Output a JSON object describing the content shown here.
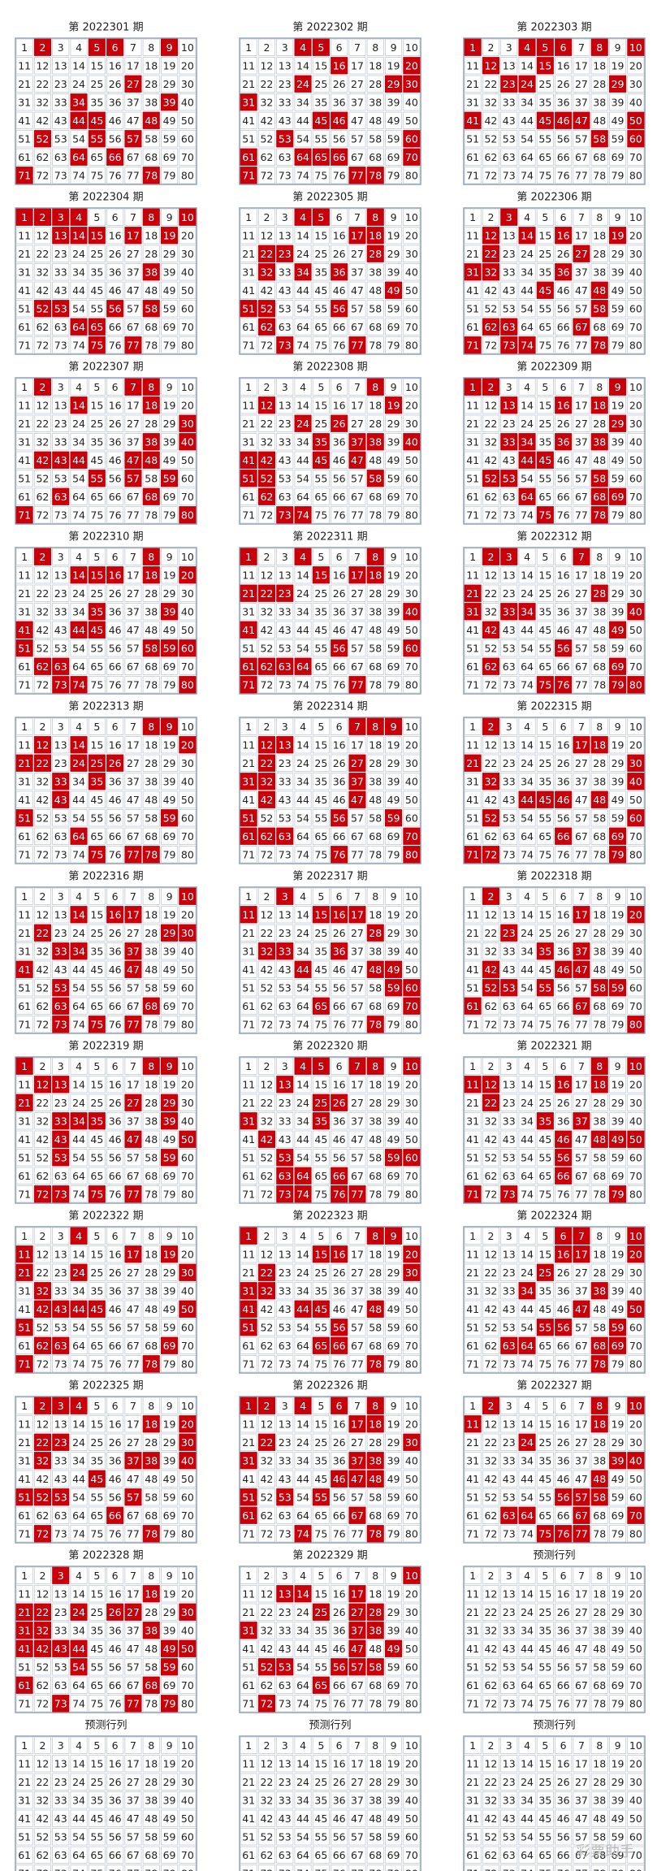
{
  "numbers": [
    1,
    2,
    3,
    4,
    5,
    6,
    7,
    8,
    9,
    10,
    11,
    12,
    13,
    14,
    15,
    16,
    17,
    18,
    19,
    20,
    21,
    22,
    23,
    24,
    25,
    26,
    27,
    28,
    29,
    30,
    31,
    32,
    33,
    34,
    35,
    36,
    37,
    38,
    39,
    40,
    41,
    42,
    43,
    44,
    45,
    46,
    47,
    48,
    49,
    50,
    51,
    52,
    53,
    54,
    55,
    56,
    57,
    58,
    59,
    60,
    61,
    62,
    63,
    64,
    65,
    66,
    67,
    68,
    69,
    70,
    71,
    72,
    73,
    74,
    75,
    76,
    77,
    78,
    79,
    80
  ],
  "grids": [
    {
      "title": "第 2022301 期",
      "drawn": [
        2,
        5,
        6,
        9,
        27,
        34,
        39,
        44,
        45,
        48,
        52,
        55,
        57,
        64,
        66,
        71,
        78
      ]
    },
    {
      "title": "第 2022302 期",
      "drawn": [
        4,
        5,
        16,
        20,
        24,
        29,
        30,
        31,
        45,
        46,
        53,
        60,
        61,
        64,
        65,
        66,
        70,
        71,
        77,
        78
      ]
    },
    {
      "title": "第 2022303 期",
      "drawn": [
        1,
        4,
        5,
        6,
        8,
        10,
        12,
        15,
        23,
        24,
        29,
        41,
        45,
        46,
        47,
        50,
        58,
        60
      ]
    },
    {
      "title": "第 2022304 期",
      "drawn": [
        1,
        2,
        3,
        4,
        8,
        10,
        13,
        14,
        15,
        17,
        19,
        38,
        52,
        53,
        56,
        58,
        64,
        65,
        75,
        77
      ]
    },
    {
      "title": "第 2022305 期",
      "drawn": [
        4,
        5,
        8,
        17,
        18,
        22,
        23,
        28,
        32,
        34,
        36,
        49,
        51,
        52,
        56,
        62,
        73,
        77
      ]
    },
    {
      "title": "第 2022306 期",
      "drawn": [
        3,
        12,
        14,
        16,
        19,
        22,
        27,
        31,
        32,
        36,
        45,
        48,
        58,
        62,
        63,
        67,
        71,
        73,
        74,
        78
      ]
    },
    {
      "title": "第 2022307 期",
      "drawn": [
        2,
        7,
        8,
        14,
        18,
        30,
        38,
        40,
        42,
        43,
        44,
        47,
        48,
        55,
        57,
        59,
        63,
        68,
        71,
        80
      ]
    },
    {
      "title": "第 2022308 期",
      "drawn": [
        8,
        12,
        19,
        24,
        26,
        35,
        37,
        38,
        40,
        41,
        42,
        45,
        47,
        51,
        52,
        58,
        62,
        73,
        74
      ]
    },
    {
      "title": "第 2022309 期",
      "drawn": [
        1,
        2,
        9,
        13,
        16,
        18,
        29,
        33,
        34,
        36,
        38,
        44,
        45,
        52,
        53,
        58,
        64,
        68,
        69,
        75,
        78
      ]
    },
    {
      "title": "第 2022310 期",
      "drawn": [
        2,
        8,
        14,
        15,
        16,
        18,
        20,
        35,
        39,
        41,
        44,
        45,
        51,
        58,
        59,
        60,
        62,
        63,
        73,
        74,
        80
      ]
    },
    {
      "title": "第 2022311 期",
      "drawn": [
        1,
        4,
        8,
        15,
        17,
        18,
        21,
        22,
        23,
        40,
        41,
        56,
        60,
        61,
        62,
        63,
        64,
        71,
        77
      ]
    },
    {
      "title": "第 2022312 期",
      "drawn": [
        2,
        3,
        7,
        21,
        28,
        31,
        33,
        34,
        40,
        42,
        49,
        56,
        62,
        69,
        75,
        76,
        79,
        80
      ]
    },
    {
      "title": "第 2022313 期",
      "drawn": [
        8,
        9,
        12,
        14,
        20,
        21,
        22,
        24,
        25,
        26,
        33,
        35,
        43,
        51,
        59,
        64,
        75,
        77,
        78
      ]
    },
    {
      "title": "第 2022314 期",
      "drawn": [
        7,
        8,
        9,
        12,
        13,
        22,
        27,
        31,
        32,
        37,
        42,
        47,
        51,
        56,
        59,
        61,
        62,
        63,
        70,
        76,
        80
      ]
    },
    {
      "title": "第 2022315 期",
      "drawn": [
        2,
        17,
        18,
        21,
        30,
        32,
        40,
        44,
        45,
        46,
        48,
        52,
        60,
        66,
        69,
        71,
        72,
        79
      ]
    },
    {
      "title": "第 2022316 期",
      "drawn": [
        10,
        14,
        16,
        17,
        22,
        29,
        30,
        33,
        34,
        37,
        41,
        47,
        53,
        63,
        68,
        73,
        75,
        77
      ]
    },
    {
      "title": "第 2022317 期",
      "drawn": [
        3,
        11,
        15,
        16,
        17,
        28,
        32,
        33,
        36,
        44,
        48,
        49,
        59,
        60,
        65,
        70,
        78
      ]
    },
    {
      "title": "第 2022318 期",
      "drawn": [
        2,
        17,
        20,
        23,
        35,
        37,
        42,
        46,
        47,
        52,
        53,
        55,
        58,
        59,
        61,
        67,
        80
      ]
    },
    {
      "title": "第 2022319 期",
      "drawn": [
        1,
        8,
        9,
        12,
        13,
        21,
        27,
        29,
        33,
        34,
        35,
        39,
        43,
        47,
        50,
        53,
        59,
        72,
        73,
        75,
        77
      ]
    },
    {
      "title": "第 2022320 期",
      "drawn": [
        4,
        5,
        7,
        8,
        10,
        13,
        25,
        26,
        31,
        35,
        42,
        53,
        59,
        60,
        63,
        64,
        66,
        73,
        74,
        76,
        77
      ]
    },
    {
      "title": "第 2022321 期",
      "drawn": [
        8,
        10,
        11,
        12,
        16,
        18,
        22,
        35,
        37,
        46,
        48,
        49,
        50,
        56,
        66,
        71,
        73,
        79
      ]
    },
    {
      "title": "第 2022322 期",
      "drawn": [
        4,
        11,
        17,
        19,
        21,
        24,
        30,
        32,
        42,
        43,
        44,
        45,
        50,
        51,
        62,
        63,
        69,
        71,
        78
      ]
    },
    {
      "title": "第 2022323 期",
      "drawn": [
        1,
        8,
        9,
        15,
        16,
        20,
        22,
        30,
        31,
        32,
        41,
        44,
        45,
        48,
        51,
        56,
        65,
        66,
        78
      ]
    },
    {
      "title": "第 2022324 期",
      "drawn": [
        6,
        7,
        10,
        16,
        17,
        20,
        25,
        34,
        38,
        47,
        50,
        55,
        56,
        59,
        63,
        64,
        68,
        69,
        78
      ]
    },
    {
      "title": "第 2022325 期",
      "drawn": [
        2,
        3,
        4,
        18,
        20,
        22,
        23,
        30,
        32,
        37,
        38,
        40,
        45,
        51,
        52,
        53,
        57,
        66,
        72,
        78
      ]
    },
    {
      "title": "第 2022326 期",
      "drawn": [
        1,
        2,
        4,
        6,
        8,
        17,
        18,
        22,
        30,
        31,
        37,
        38,
        46,
        47,
        48,
        51,
        53,
        55,
        61,
        67,
        74,
        78
      ]
    },
    {
      "title": "第 2022327 期",
      "drawn": [
        2,
        8,
        10,
        11,
        18,
        24,
        39,
        40,
        48,
        56,
        57,
        58,
        63,
        64,
        67,
        70,
        75,
        76,
        77
      ]
    },
    {
      "title": "第 2022328 期",
      "drawn": [
        3,
        18,
        21,
        22,
        24,
        26,
        27,
        30,
        31,
        32,
        38,
        41,
        42,
        43,
        44,
        49,
        50,
        54,
        59,
        61,
        68,
        73,
        77,
        79
      ]
    },
    {
      "title": "第 2022329 期",
      "drawn": [
        10,
        13,
        14,
        17,
        25,
        27,
        28,
        31,
        37,
        38,
        47,
        49,
        52,
        53,
        56,
        57,
        58,
        65,
        72
      ]
    },
    {
      "title": "预测行列",
      "drawn": []
    },
    {
      "title": "预测行列",
      "drawn": []
    },
    {
      "title": "预测行列",
      "drawn": []
    },
    {
      "title": "预测行列",
      "drawn": []
    }
  ],
  "watermark": "彩票助手"
}
